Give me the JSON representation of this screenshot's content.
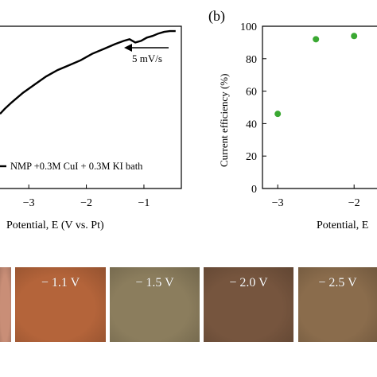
{
  "panel_b_label": "(b)",
  "chart_data": [
    {
      "type": "line",
      "xlabel": "Potential, E (V vs. Pt)",
      "xlim": [
        -3.5,
        -0.35
      ],
      "xticks": [
        -3,
        -2,
        -1
      ],
      "ylim": [
        0,
        1
      ],
      "series": [
        {
          "name": "NMP +0.3M CuI + 0.3M KI bath",
          "x": [
            -3.5,
            -3.42,
            -3.3,
            -3.1,
            -2.9,
            -2.7,
            -2.5,
            -2.3,
            -2.1,
            -1.9,
            -1.7,
            -1.5,
            -1.35,
            -1.25,
            -1.15,
            -1.05,
            -0.95,
            -0.85,
            -0.75,
            -0.65,
            -0.55,
            -0.45
          ],
          "y": [
            0.46,
            0.49,
            0.53,
            0.59,
            0.64,
            0.69,
            0.73,
            0.76,
            0.79,
            0.83,
            0.86,
            0.89,
            0.91,
            0.92,
            0.9,
            0.91,
            0.93,
            0.94,
            0.955,
            0.965,
            0.97,
            0.97
          ]
        }
      ],
      "annotation": "5 mV/s",
      "legend_text": "NMP +0.3M CuI + 0.3M KI bath"
    },
    {
      "type": "scatter",
      "ylabel": "Current efficiency  (%)",
      "xlabel": "Potential, E",
      "xlim": [
        -3.2,
        -1.7
      ],
      "ylim": [
        0,
        100
      ],
      "xticks": [
        -3,
        -2
      ],
      "yticks": [
        0,
        20,
        40,
        60,
        80,
        100
      ],
      "series": [
        {
          "x": [
            -3.0,
            -2.5,
            -2.0
          ],
          "y": [
            46,
            92,
            94
          ],
          "color": "#3aa832"
        }
      ]
    }
  ],
  "swatches": [
    {
      "label": "",
      "color": "#c98e77"
    },
    {
      "label": "− 1.1 V",
      "color": "#b4643a"
    },
    {
      "label": "− 1.5 V",
      "color": "#8b7d5d"
    },
    {
      "label": "− 2.0 V",
      "color": "#76553e"
    },
    {
      "label": "− 2.5 V",
      "color": "#8a6c4c"
    }
  ]
}
